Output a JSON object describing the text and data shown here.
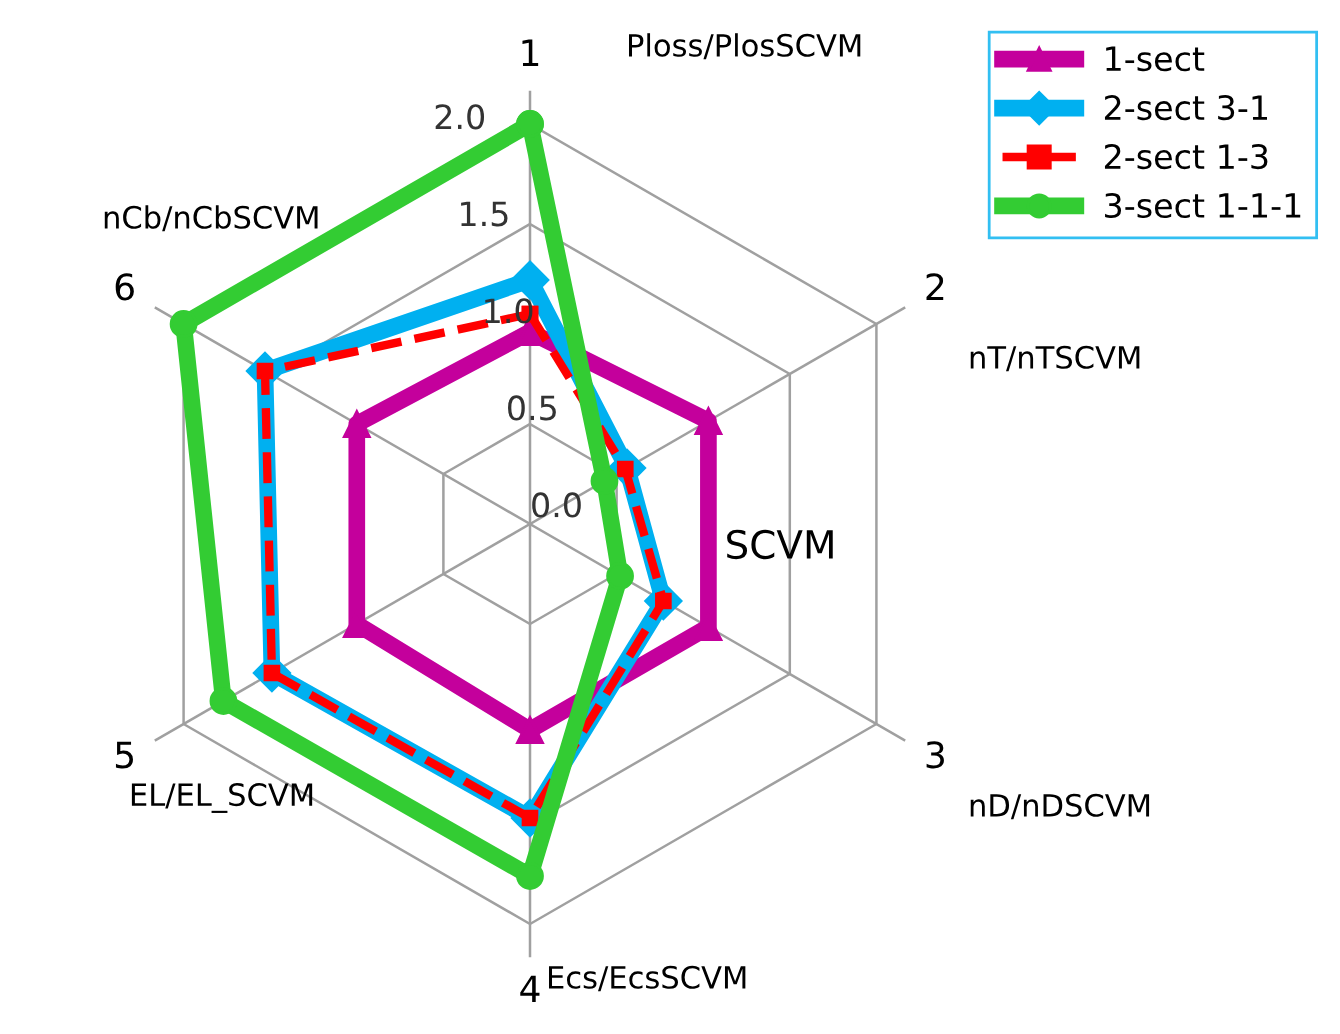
{
  "chart_data": {
    "type": "radar",
    "categories": [
      "1",
      "2",
      "3",
      "4",
      "5",
      "6"
    ],
    "ylim": [
      0,
      2
    ],
    "yticks": [
      {
        "value": 0,
        "label": "0.0"
      },
      {
        "value": 0.5,
        "label": "0.5"
      },
      {
        "value": 1,
        "label": "1.0"
      },
      {
        "value": 1.5,
        "label": "1.5"
      },
      {
        "value": 2,
        "label": "2.0"
      }
    ],
    "grid": true,
    "legend": "top right",
    "annotations": [
      "Ploss/PlosSCVM",
      "nT/nTSCVM",
      "nD/nDSCVM",
      "Ecs/EcsSCVM",
      "EL/EL_SCVM",
      "nCb/nCbSCVM",
      "SCVM"
    ],
    "series": [
      {
        "name": "1-sect",
        "color": "#c4009c",
        "marker": "triangle",
        "line_style": "solid",
        "values": [
          0.96,
          1.03,
          1.03,
          1.03,
          1.0,
          1.0
        ]
      },
      {
        "name": "2-sect 3-1",
        "color": "#00b0f0",
        "marker": "diamond",
        "line_style": "solid",
        "values": [
          1.22,
          0.56,
          0.77,
          1.47,
          1.49,
          1.53
        ]
      },
      {
        "name": "2-sect 1-3",
        "color": "#ff0000",
        "marker": "square",
        "line_style": "dashed",
        "values": [
          1.05,
          0.55,
          0.77,
          1.47,
          1.49,
          1.53
        ]
      },
      {
        "name": "3-sect 1-1-1",
        "color": "#33cc33",
        "marker": "circle",
        "line_style": "solid",
        "values": [
          2.0,
          0.43,
          0.52,
          1.76,
          1.77,
          2.0
        ]
      }
    ]
  }
}
